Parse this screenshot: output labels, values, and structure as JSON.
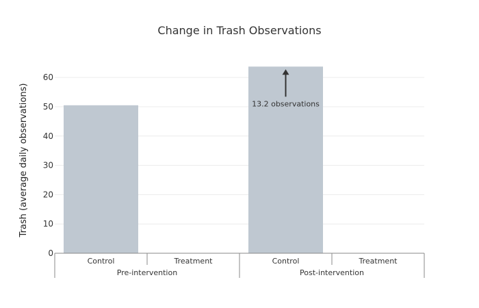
{
  "chart_data": {
    "type": "bar",
    "title": "Change in Trash Observations",
    "ylabel": "Trash (average daily observations)",
    "xlabel": "",
    "ylim": [
      0,
      64
    ],
    "yticks": [
      0,
      10,
      20,
      30,
      40,
      50,
      60
    ],
    "grid": true,
    "groups": [
      {
        "label": "Pre-intervention",
        "categories": [
          "Control",
          "Treatment"
        ],
        "values": [
          50.5,
          null
        ]
      },
      {
        "label": "Post-intervention",
        "categories": [
          "Control",
          "Treatment"
        ],
        "values": [
          63.7,
          null
        ]
      }
    ],
    "annotation": {
      "text": "13.2 observations",
      "group": 1,
      "bar": 0
    },
    "colors": {
      "bar": "#bfc8d1",
      "grid": "#ececec",
      "axis": "#888888",
      "text": "#333333",
      "arrow": "#333333"
    }
  }
}
